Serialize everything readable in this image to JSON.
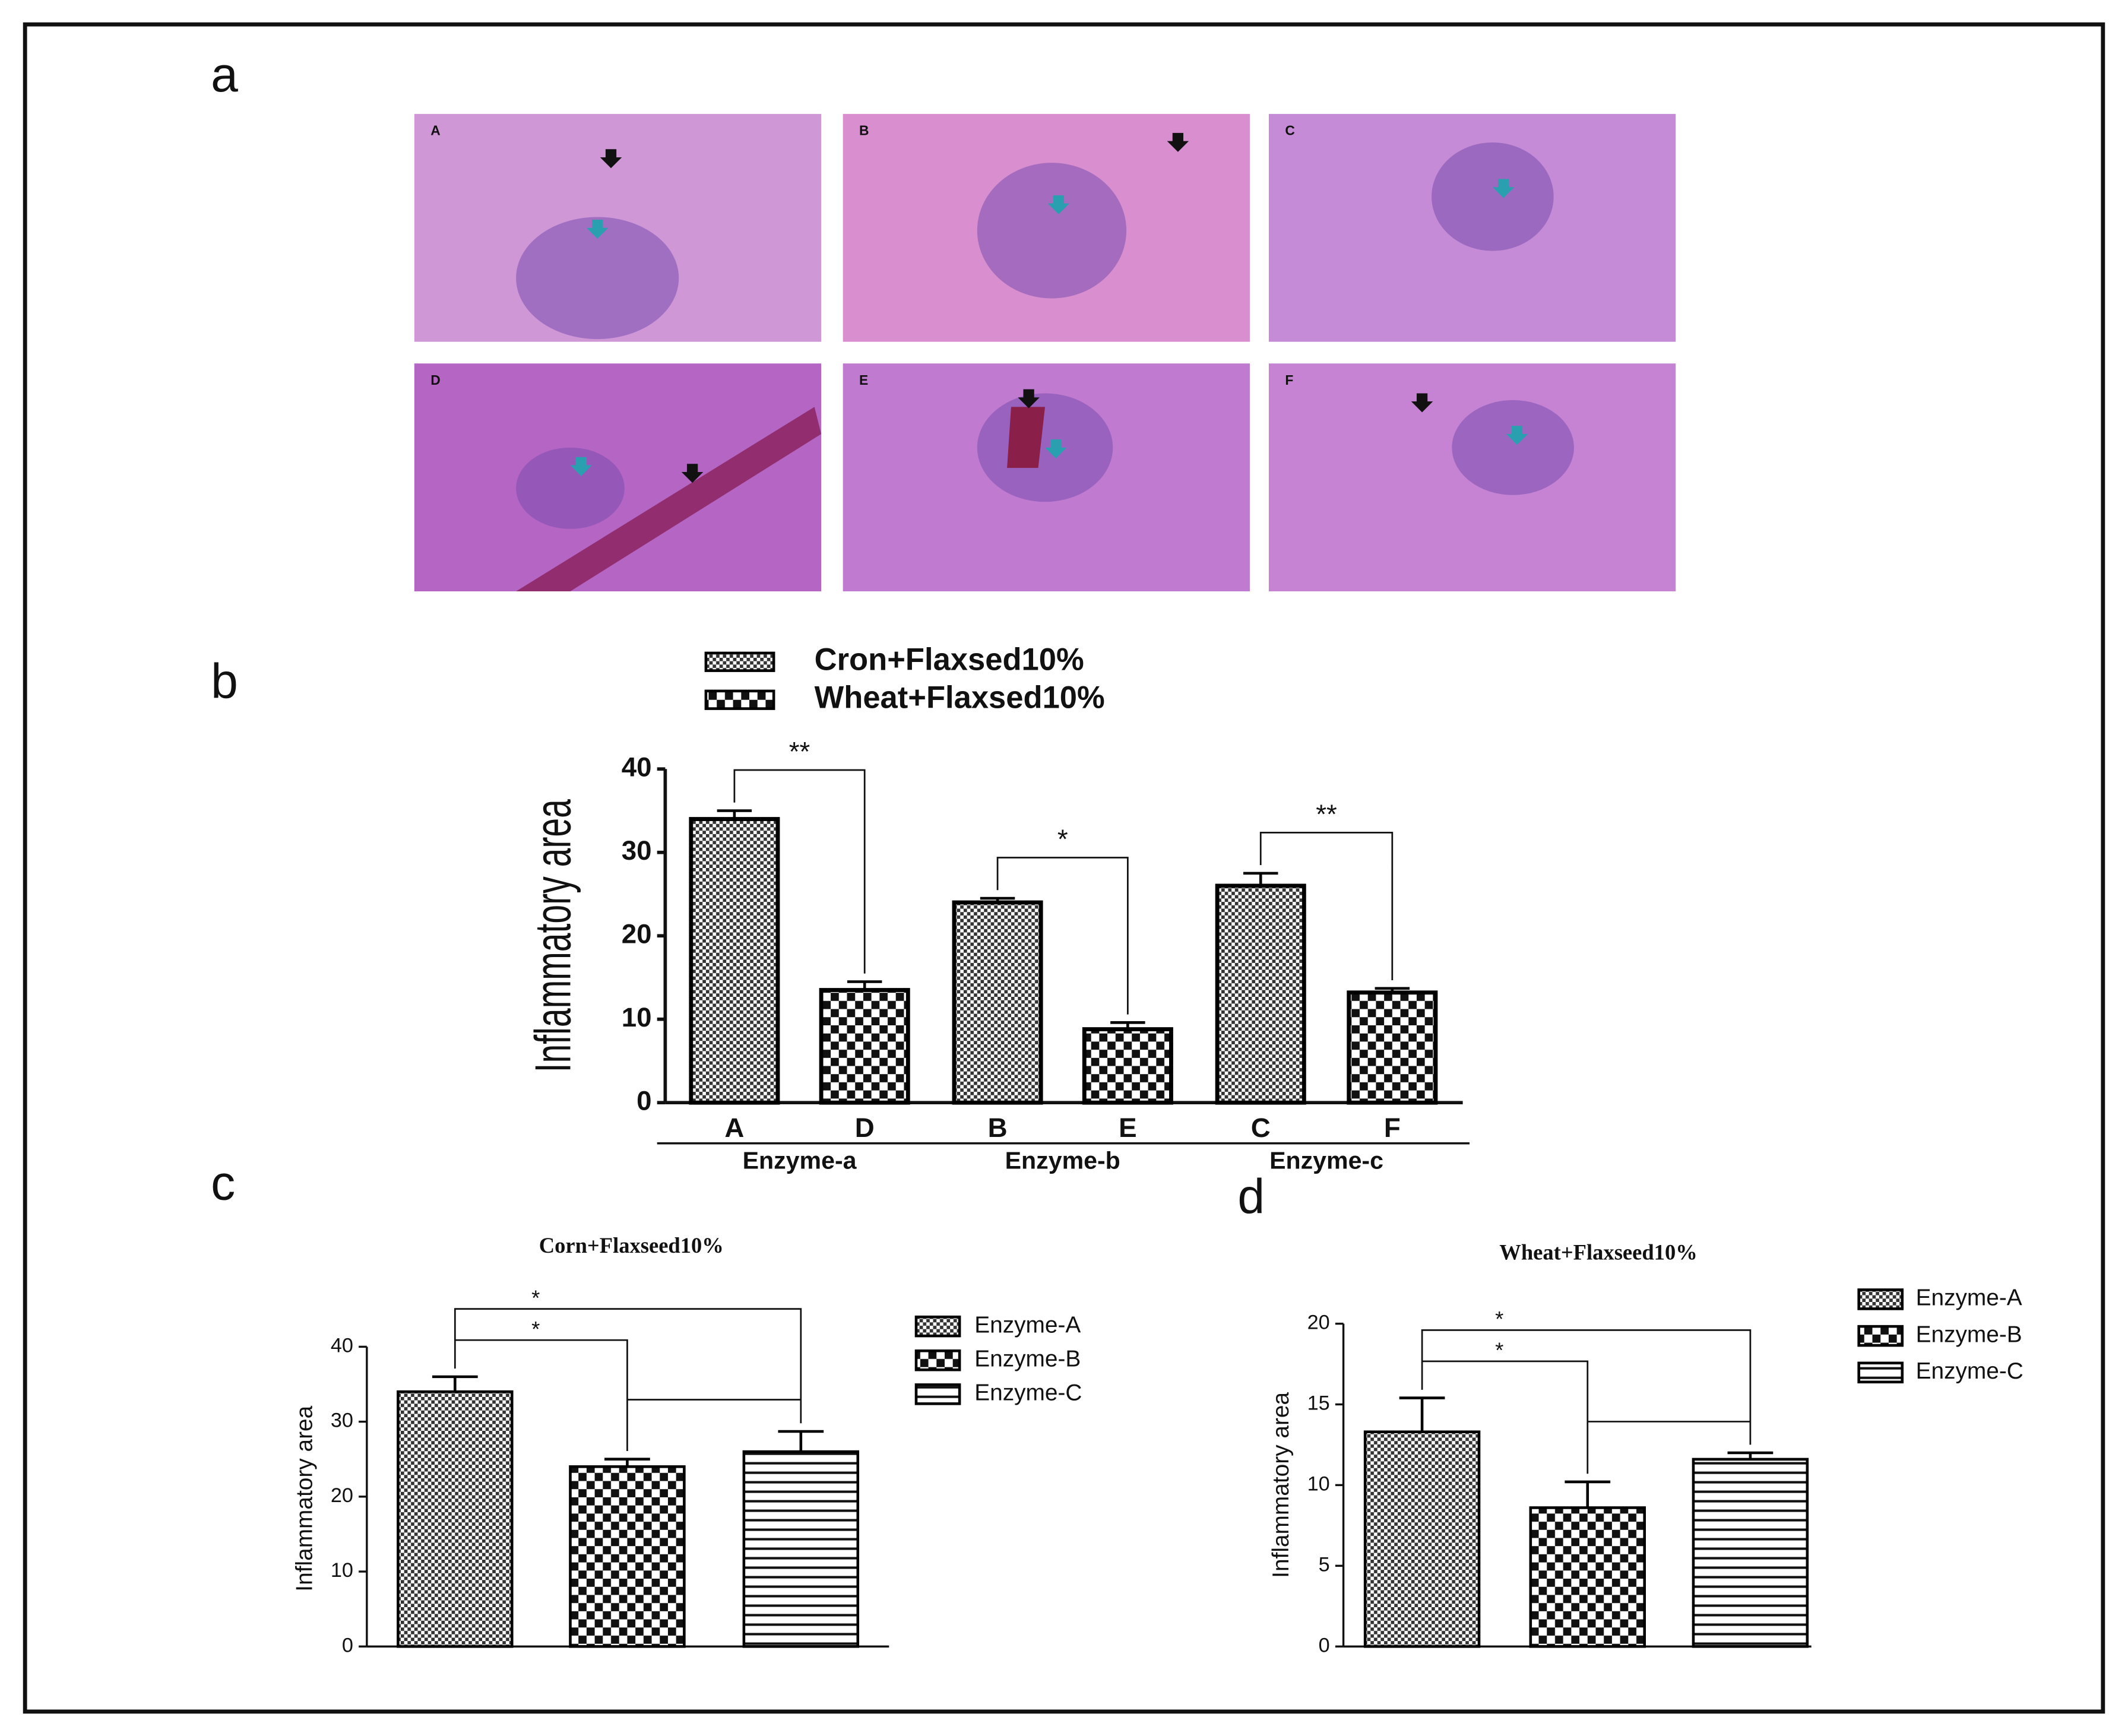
{
  "figure": {
    "panel_labels": [
      "a",
      "b",
      "c",
      "d"
    ],
    "micrograph_labels": [
      "A",
      "B",
      "C",
      "D",
      "E",
      "F"
    ]
  },
  "chart_data": [
    {
      "type": "bar",
      "ylabel": "Inflammatory area",
      "categories": [
        "A",
        "D",
        "B",
        "E",
        "C",
        "F"
      ],
      "group_labels": [
        "Enzyme-a",
        "Enzyme-b",
        "Enzyme-c"
      ],
      "series": [
        {
          "name": "Cron+Flaxsed10%",
          "pattern": "fine-check",
          "color": "#000000",
          "values": [
            34,
            null,
            24,
            null,
            26,
            null
          ],
          "errors": [
            1,
            null,
            0.5,
            null,
            1.5,
            null
          ]
        },
        {
          "name": "Wheat+Flaxsed10%",
          "pattern": "coarse-check",
          "color": "#000000",
          "values": [
            null,
            13.5,
            null,
            8.8,
            null,
            13.2
          ],
          "errors": [
            null,
            1,
            null,
            0.8,
            null,
            0.5
          ]
        }
      ],
      "significance": [
        "**",
        "*",
        "**"
      ],
      "ylim": [
        0,
        40
      ],
      "yticks": [
        0,
        10,
        20,
        30,
        40
      ]
    },
    {
      "type": "bar",
      "title": "Corn+Flaxseed10%",
      "ylabel": "Inflammatory area",
      "categories": [
        null,
        null,
        null
      ],
      "series": [
        {
          "name": "Enzyme-A",
          "pattern": "fine-check",
          "color": "#000000",
          "values": [
            34,
            null,
            null
          ],
          "errors": [
            2,
            null,
            null
          ]
        },
        {
          "name": "Enzyme-B",
          "pattern": "coarse-check",
          "color": "#000000",
          "values": [
            null,
            24,
            null
          ],
          "errors": [
            null,
            1,
            null
          ]
        },
        {
          "name": "Enzyme-C",
          "pattern": "stripes",
          "color": "#000000",
          "values": [
            null,
            null,
            26
          ],
          "errors": [
            null,
            null,
            2.7
          ]
        }
      ],
      "significance": [
        "*",
        "*"
      ],
      "ylim": [
        0,
        40
      ],
      "yticks": [
        0,
        10,
        20,
        30,
        40
      ]
    },
    {
      "type": "bar",
      "title": "Wheat+Flaxseed10%",
      "ylabel": "Inflammatory area",
      "categories": [
        null,
        null,
        null
      ],
      "series": [
        {
          "name": "Enzyme-A",
          "pattern": "fine-check",
          "color": "#000000",
          "values": [
            13.3,
            null,
            null
          ],
          "errors": [
            2.1,
            null,
            null
          ]
        },
        {
          "name": "Enzyme-B",
          "pattern": "coarse-check",
          "color": "#000000",
          "values": [
            null,
            8.6,
            null
          ],
          "errors": [
            null,
            1.6,
            null
          ]
        },
        {
          "name": "Enzyme-C",
          "pattern": "stripes",
          "color": "#000000",
          "values": [
            null,
            null,
            11.6
          ],
          "errors": [
            null,
            null,
            0.4
          ]
        }
      ],
      "significance": [
        "*",
        "*"
      ],
      "ylim": [
        0,
        20
      ],
      "yticks": [
        0,
        5,
        10,
        15,
        20
      ]
    }
  ]
}
